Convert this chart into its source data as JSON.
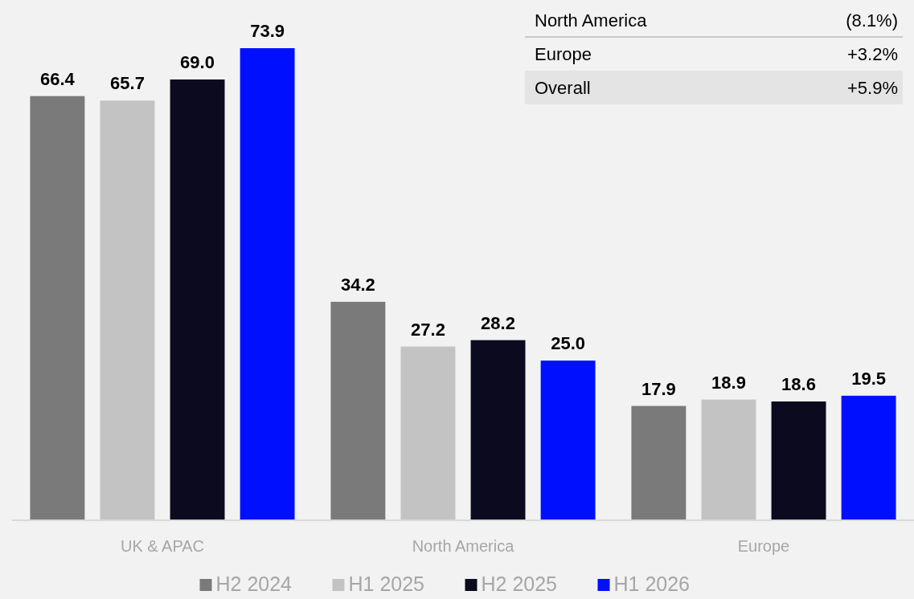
{
  "chart_data": {
    "type": "bar",
    "categories": [
      "UK & APAC",
      "North America",
      "Europe"
    ],
    "series": [
      {
        "name": "H2 2024",
        "color": "#7a7a7a",
        "values": [
          66.4,
          34.2,
          17.9
        ],
        "value_labels": [
          "66.4",
          "34.2",
          "17.9"
        ]
      },
      {
        "name": "H1 2025",
        "color": "#c3c3c3",
        "values": [
          65.7,
          27.2,
          18.9
        ],
        "value_labels": [
          "65.7",
          "27.2",
          "18.9"
        ]
      },
      {
        "name": "H2 2025",
        "color": "#0c0a1e",
        "values": [
          69,
          28.2,
          18.6
        ],
        "value_labels": [
          "69.0",
          "28.2",
          "18.6"
        ]
      },
      {
        "name": "H1 2026",
        "color": "#0010ff",
        "values": [
          73.9,
          25,
          19.5
        ],
        "value_labels": [
          "73.9",
          "25.0",
          "19.5"
        ]
      }
    ],
    "legend": "bottom",
    "grid": false,
    "annotations": [
      "North America",
      "(8.1%)",
      "Europe",
      "+3.2%",
      "Overall",
      "+5.9%"
    ]
  }
}
